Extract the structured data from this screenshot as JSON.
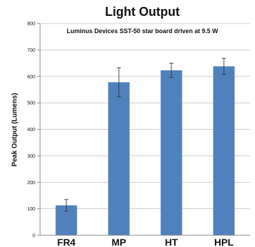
{
  "chart_data": {
    "type": "bar",
    "title": "Light Output",
    "subtitle": "Luminus Devices SST-50 star board driven at 9.5 W",
    "ylabel": "Peak Output (Lumens)",
    "xlabel": "",
    "categories": [
      "FR4",
      "MP",
      "HT",
      "HPL"
    ],
    "values": [
      113,
      578,
      623,
      638
    ],
    "error": [
      22,
      55,
      27,
      30
    ],
    "ylim": [
      0,
      800
    ],
    "yticks": [
      0,
      100,
      200,
      300,
      400,
      500,
      600,
      700,
      800
    ],
    "grid": true,
    "colors": {
      "bar": "#4f81bd",
      "grid": "#bfbfbf",
      "axis": "#888888",
      "errorbar": "#333333"
    }
  }
}
